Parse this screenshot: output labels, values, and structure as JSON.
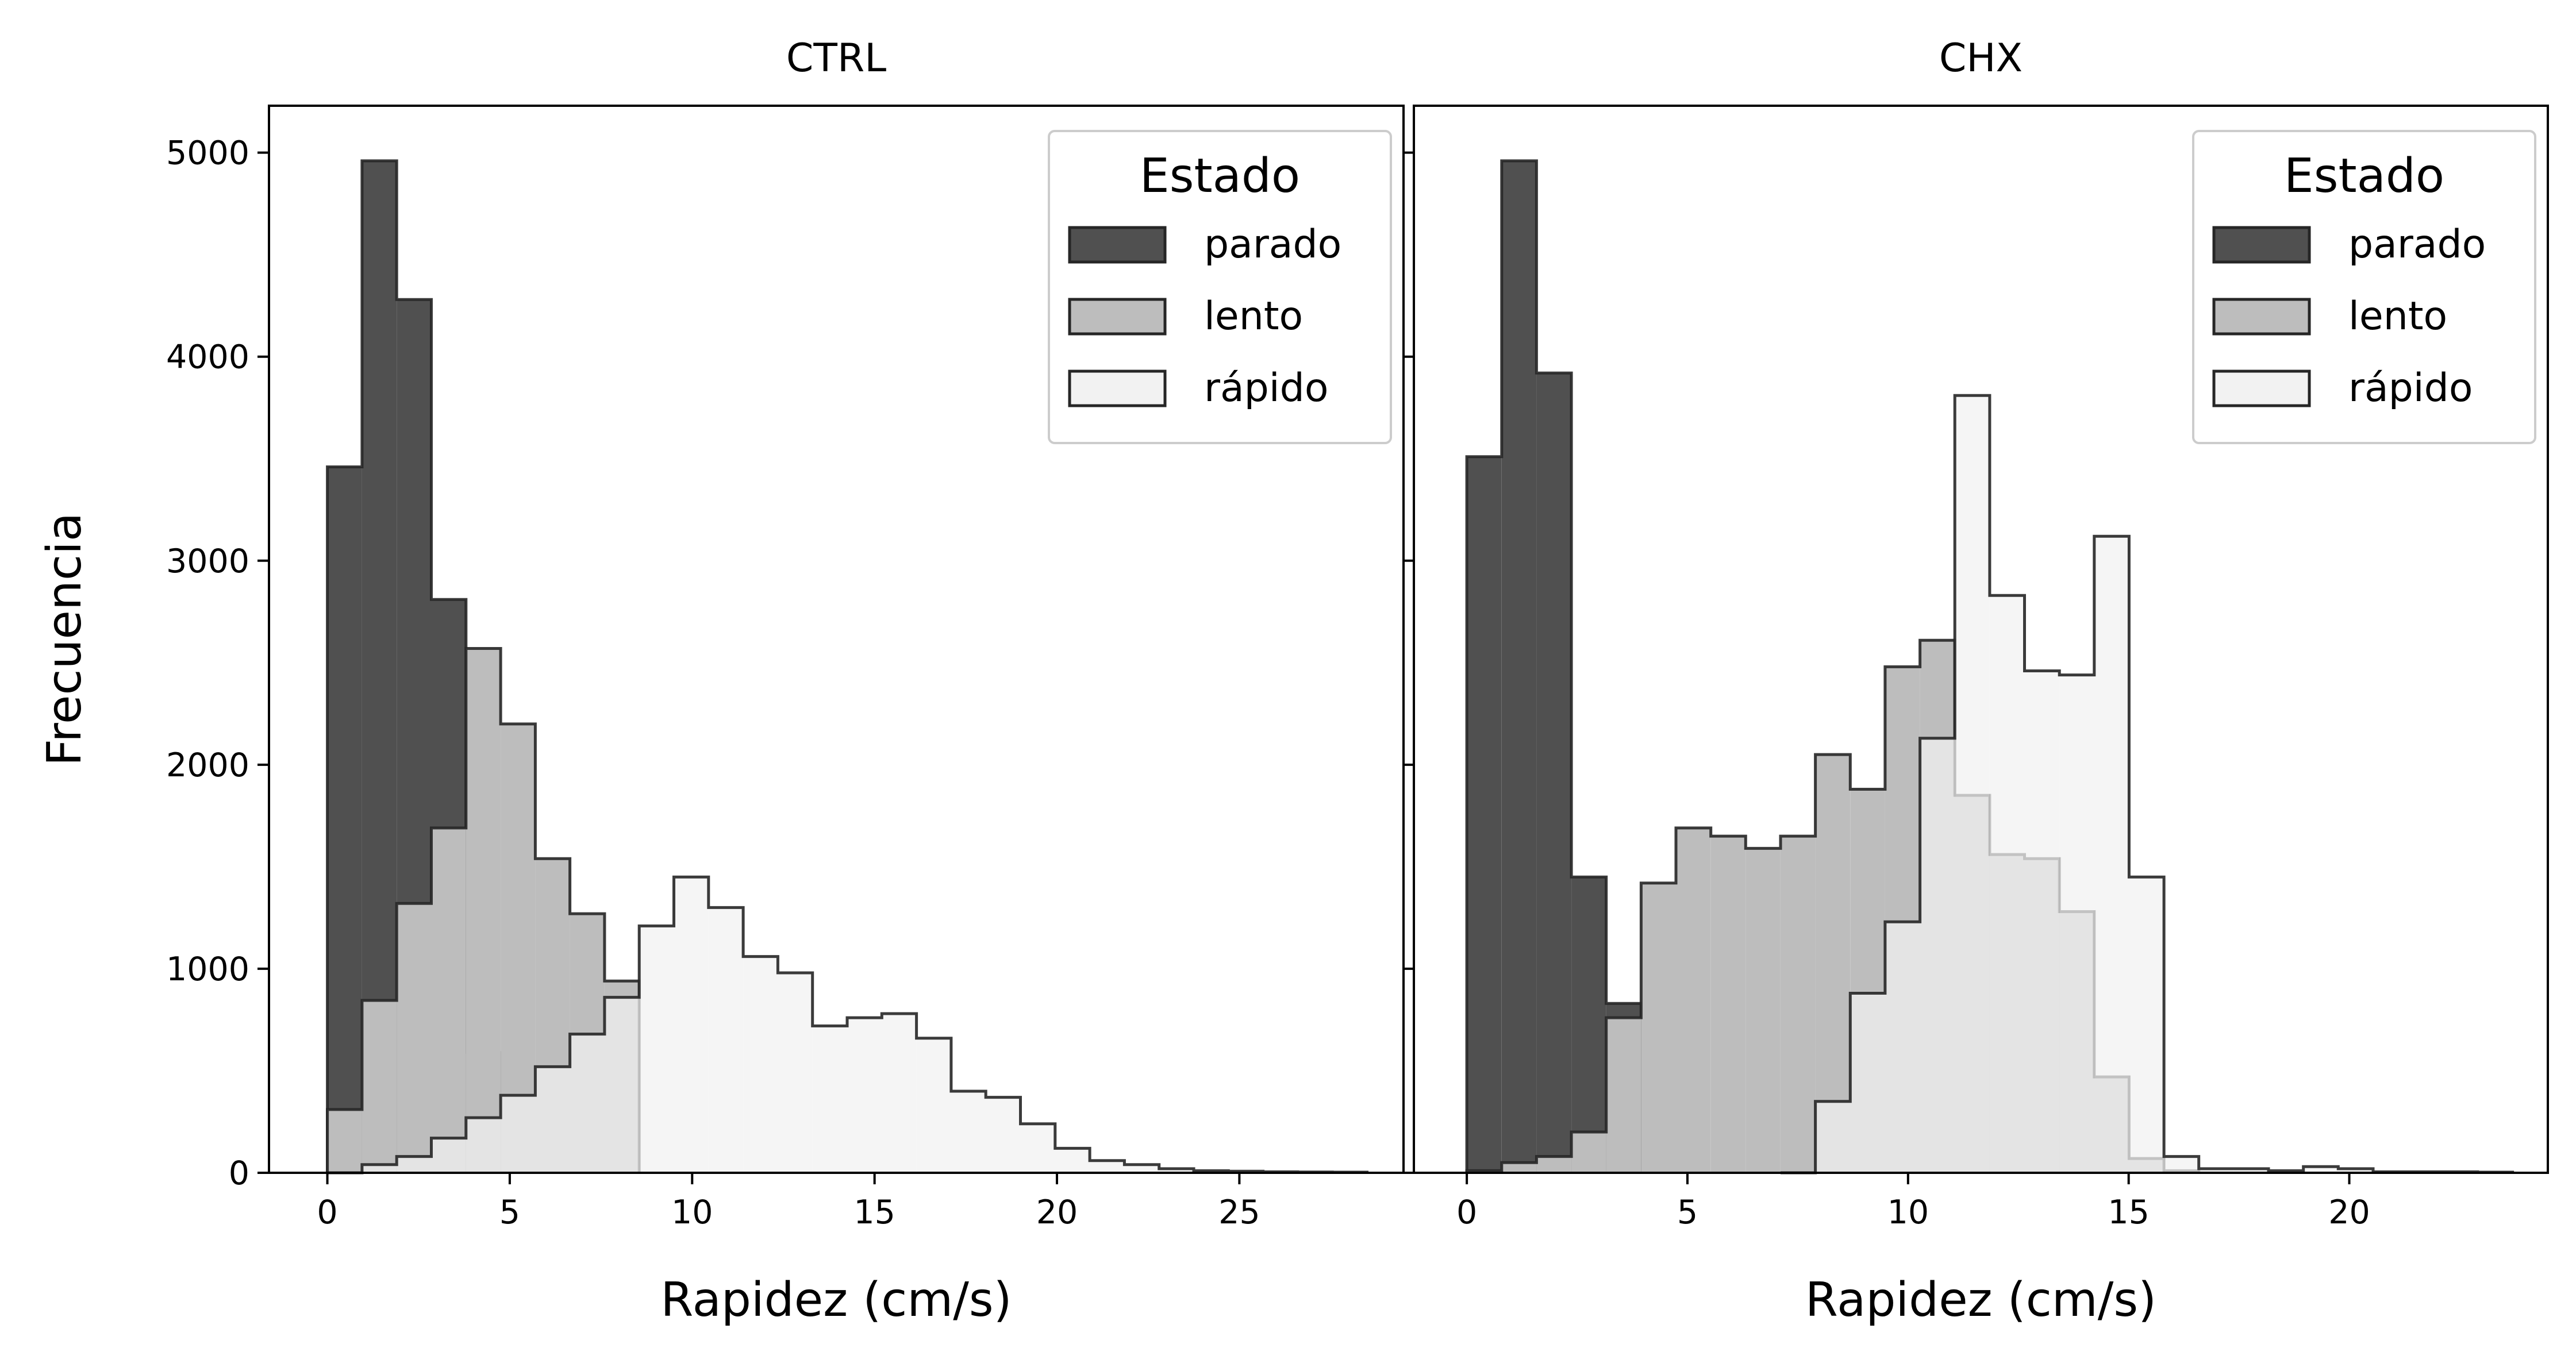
{
  "colors": {
    "parado": "#505050",
    "lento": "#bdbdbd",
    "rapido": "#f2f2f2",
    "edge": "#262626"
  },
  "chart_data": [
    {
      "type": "histogram",
      "title": "CTRL",
      "xlabel": "Rapidez (cm/s)",
      "ylabel": "Frecuencia",
      "xlim": [
        -1.6,
        29.5
      ],
      "ylim": [
        0,
        5230
      ],
      "xticks": [
        0,
        5,
        10,
        15,
        20,
        25
      ],
      "yticks": [
        0,
        1000,
        2000,
        3000,
        4000,
        5000
      ],
      "grid": false,
      "legend": {
        "title": "Estado",
        "position": "top-right",
        "entries": [
          "parado",
          "lento",
          "rápido"
        ]
      },
      "series": [
        {
          "name": "parado",
          "bin_edges": [
            0,
            0.95,
            1.9,
            2.85,
            3.8,
            4.75
          ],
          "counts": [
            3460,
            4960,
            4280,
            2810,
            590
          ]
        },
        {
          "name": "lento",
          "bin_edges": [
            0,
            0.95,
            1.9,
            2.85,
            3.8,
            4.75,
            5.7,
            6.65,
            7.6,
            8.55
          ],
          "counts": [
            310,
            845,
            1320,
            1690,
            2570,
            2200,
            1540,
            1270,
            940
          ]
        },
        {
          "name": "rápido",
          "bin_edges": [
            0,
            0.95,
            1.9,
            2.85,
            3.8,
            4.75,
            5.7,
            6.65,
            7.6,
            8.55,
            9.5,
            10.45,
            11.4,
            12.35,
            13.3,
            14.25,
            15.2,
            16.15,
            17.1,
            18.05,
            19.0,
            19.95,
            20.9,
            21.85,
            22.8,
            23.75,
            24.7,
            25.65,
            26.6,
            27.55,
            28.5
          ],
          "counts": [
            0,
            40,
            80,
            170,
            270,
            380,
            520,
            680,
            860,
            1210,
            1450,
            1300,
            1060,
            980,
            720,
            760,
            780,
            660,
            400,
            370,
            240,
            120,
            60,
            40,
            20,
            10,
            8,
            5,
            4,
            3
          ]
        }
      ]
    },
    {
      "type": "histogram",
      "title": "CHX",
      "xlabel": "Rapidez (cm/s)",
      "ylabel": "",
      "xlim": [
        -1.2,
        24.5
      ],
      "ylim": [
        0,
        5230
      ],
      "xticks": [
        0,
        5,
        10,
        15,
        20
      ],
      "yticks": [
        0,
        1000,
        2000,
        3000,
        4000,
        5000
      ],
      "grid": false,
      "legend": {
        "title": "Estado",
        "position": "top-right",
        "entries": [
          "parado",
          "lento",
          "rápido"
        ]
      },
      "series": [
        {
          "name": "parado",
          "bin_edges": [
            0,
            0.79,
            1.58,
            2.37,
            3.16,
            3.95
          ],
          "counts": [
            3510,
            4960,
            3920,
            1450,
            830
          ]
        },
        {
          "name": "lento",
          "bin_edges": [
            0,
            0.79,
            1.58,
            2.37,
            3.16,
            3.95,
            4.74,
            5.53,
            6.32,
            7.11,
            7.9,
            8.69,
            9.48,
            10.27,
            11.06,
            11.85,
            12.64,
            13.43,
            14.22,
            15.01,
            15.8,
            16.59
          ],
          "counts": [
            10,
            50,
            80,
            200,
            760,
            1420,
            1690,
            1650,
            1590,
            1650,
            2050,
            1880,
            2480,
            2610,
            1850,
            1560,
            1540,
            1280,
            470,
            70,
            10
          ]
        },
        {
          "name": "rápido",
          "bin_edges": [
            7.11,
            7.9,
            8.69,
            9.48,
            10.27,
            11.06,
            11.85,
            12.64,
            13.43,
            14.22,
            15.01,
            15.8,
            16.59,
            17.38,
            18.17,
            18.96,
            19.75,
            20.54,
            21.33,
            22.12,
            22.91,
            23.7
          ],
          "counts": [
            0,
            350,
            880,
            1230,
            2130,
            3810,
            2830,
            2460,
            2440,
            3120,
            1450,
            80,
            20,
            20,
            10,
            30,
            20,
            5,
            5,
            5,
            3
          ]
        }
      ]
    }
  ]
}
